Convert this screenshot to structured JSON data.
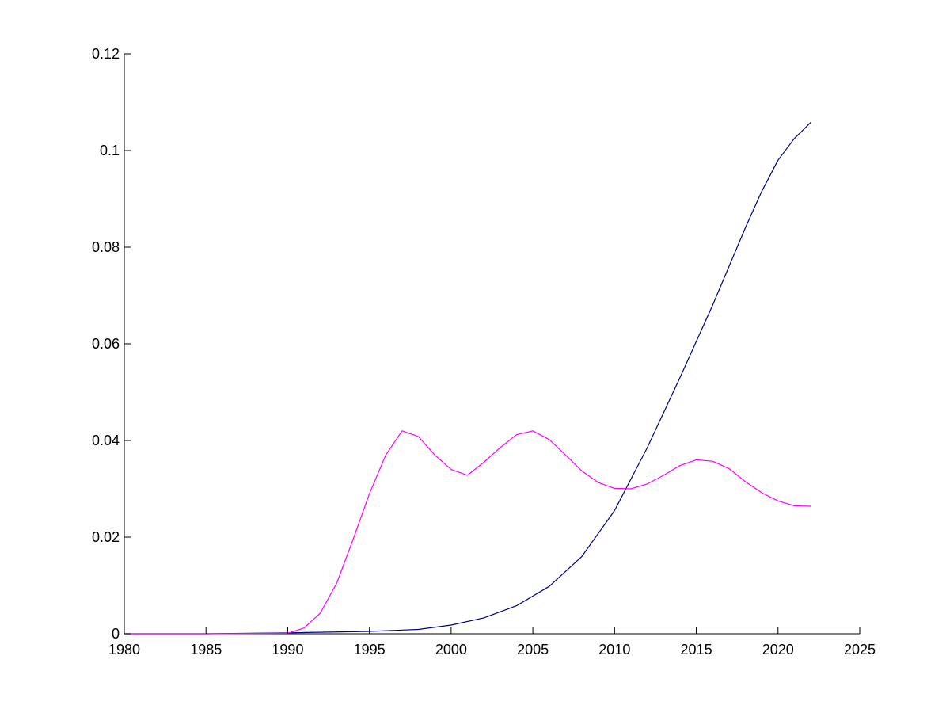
{
  "chart_data": {
    "type": "line",
    "title": "",
    "xlabel": "",
    "ylabel": "",
    "xlim": [
      1980,
      2025
    ],
    "ylim": [
      0,
      0.12
    ],
    "x_ticks": [
      "1980",
      "1985",
      "1990",
      "1995",
      "2000",
      "2005",
      "2010",
      "2015",
      "2020",
      "2025"
    ],
    "y_ticks": [
      "0",
      "0.02",
      "0.04",
      "0.06",
      "0.08",
      "0.1",
      "0.12"
    ],
    "grid": false,
    "legend": "none",
    "series": [
      {
        "color": "#000080",
        "points": [
          [
            1980,
            0
          ],
          [
            1985,
            0
          ],
          [
            1990,
            0.0002
          ],
          [
            1995,
            0.0005
          ],
          [
            1998,
            0.0009
          ],
          [
            2000,
            0.0018
          ],
          [
            2002,
            0.0033
          ],
          [
            2004,
            0.0058
          ],
          [
            2006,
            0.0098
          ],
          [
            2008,
            0.016
          ],
          [
            2010,
            0.0255
          ],
          [
            2012,
            0.0385
          ],
          [
            2014,
            0.053
          ],
          [
            2016,
            0.068
          ],
          [
            2018,
            0.084
          ],
          [
            2019,
            0.0915
          ],
          [
            2020,
            0.098
          ],
          [
            2021,
            0.1025
          ],
          [
            2022,
            0.1058
          ]
        ]
      },
      {
        "color": "#ff00ff",
        "points": [
          [
            1980,
            0
          ],
          [
            1985,
            0
          ],
          [
            1990,
            0.0001
          ],
          [
            1991,
            0.0012
          ],
          [
            1992,
            0.0043
          ],
          [
            1993,
            0.0105
          ],
          [
            1994,
            0.0195
          ],
          [
            1995,
            0.029
          ],
          [
            1996,
            0.037
          ],
          [
            1997,
            0.042
          ],
          [
            1998,
            0.0408
          ],
          [
            1999,
            0.037
          ],
          [
            2000,
            0.034
          ],
          [
            2001,
            0.0328
          ],
          [
            2002,
            0.0355
          ],
          [
            2003,
            0.0385
          ],
          [
            2004,
            0.0412
          ],
          [
            2005,
            0.042
          ],
          [
            2006,
            0.0402
          ],
          [
            2007,
            0.037
          ],
          [
            2008,
            0.0337
          ],
          [
            2009,
            0.0313
          ],
          [
            2010,
            0.0301
          ],
          [
            2011,
            0.03
          ],
          [
            2012,
            0.031
          ],
          [
            2013,
            0.0328
          ],
          [
            2014,
            0.0348
          ],
          [
            2015,
            0.036
          ],
          [
            2016,
            0.0357
          ],
          [
            2017,
            0.0342
          ],
          [
            2018,
            0.0315
          ],
          [
            2019,
            0.0292
          ],
          [
            2020,
            0.0275
          ],
          [
            2021,
            0.0265
          ],
          [
            2022,
            0.0264
          ]
        ]
      }
    ]
  }
}
